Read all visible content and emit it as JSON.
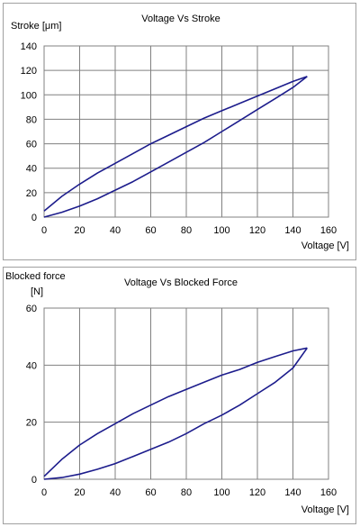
{
  "colors": {
    "series": "#1c1c8c",
    "grid": "#808080",
    "frame": "#a0a0a0"
  },
  "chart_data": [
    {
      "type": "line",
      "title": "Voltage Vs Stroke",
      "ylabel": "Stroke [μm]",
      "xlabel": "Voltage [V]",
      "xlim": [
        0,
        160
      ],
      "ylim": [
        0,
        140
      ],
      "xticks": [
        0,
        20,
        40,
        60,
        80,
        100,
        120,
        140,
        160
      ],
      "yticks": [
        0,
        20,
        40,
        60,
        80,
        100,
        120,
        140
      ],
      "grid": true,
      "series": [
        {
          "values_x": [
            0,
            10,
            20,
            30,
            40,
            50,
            60,
            70,
            80,
            90,
            100,
            110,
            120,
            130,
            140,
            148
          ],
          "values_y": [
            5,
            17,
            27,
            36,
            44,
            52,
            60,
            67,
            74,
            81,
            87,
            93,
            99,
            105,
            111,
            115
          ]
        },
        {
          "values_x": [
            148,
            140,
            130,
            120,
            110,
            100,
            90,
            80,
            70,
            60,
            50,
            40,
            30,
            20,
            10,
            0
          ],
          "values_y": [
            115,
            106,
            97,
            88,
            79,
            70,
            61,
            53,
            45,
            37,
            29,
            22,
            15,
            9,
            4,
            0
          ]
        }
      ]
    },
    {
      "type": "line",
      "title": "Voltage Vs Blocked Force",
      "ylabel": "Blocked force [N]",
      "xlabel": "Voltage [V]",
      "xlim": [
        0,
        160
      ],
      "ylim": [
        0,
        60
      ],
      "xticks": [
        0,
        20,
        40,
        60,
        80,
        100,
        120,
        140,
        160
      ],
      "yticks": [
        0,
        20,
        40,
        60
      ],
      "grid": true,
      "series": [
        {
          "values_x": [
            0,
            10,
            20,
            30,
            40,
            50,
            60,
            70,
            80,
            90,
            100,
            110,
            120,
            130,
            140,
            148
          ],
          "values_y": [
            1,
            7,
            12,
            16,
            19.5,
            23,
            26,
            29,
            31.5,
            34,
            36.5,
            38.5,
            41,
            43,
            45,
            46
          ]
        },
        {
          "values_x": [
            148,
            140,
            130,
            120,
            110,
            100,
            90,
            80,
            70,
            60,
            50,
            40,
            30,
            20,
            10,
            0
          ],
          "values_y": [
            46,
            39,
            34,
            30,
            26,
            22.5,
            19.5,
            16,
            13,
            10.5,
            8,
            5.5,
            3.5,
            1.8,
            0.6,
            0
          ]
        }
      ]
    }
  ]
}
